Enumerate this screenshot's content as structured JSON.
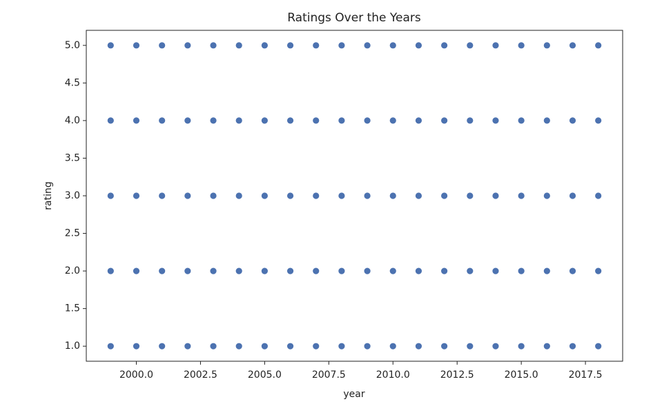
{
  "chart_data": {
    "type": "scatter",
    "title": "Ratings Over the Years",
    "xlabel": "year",
    "ylabel": "rating",
    "color": "#4c72b0",
    "x": [
      1999,
      1999,
      1999,
      1999,
      1999,
      2000,
      2000,
      2000,
      2000,
      2000,
      2001,
      2001,
      2001,
      2001,
      2001,
      2002,
      2002,
      2002,
      2002,
      2002,
      2003,
      2003,
      2003,
      2003,
      2003,
      2004,
      2004,
      2004,
      2004,
      2004,
      2005,
      2005,
      2005,
      2005,
      2005,
      2006,
      2006,
      2006,
      2006,
      2006,
      2007,
      2007,
      2007,
      2007,
      2007,
      2008,
      2008,
      2008,
      2008,
      2008,
      2009,
      2009,
      2009,
      2009,
      2009,
      2010,
      2010,
      2010,
      2010,
      2010,
      2011,
      2011,
      2011,
      2011,
      2011,
      2012,
      2012,
      2012,
      2012,
      2012,
      2013,
      2013,
      2013,
      2013,
      2013,
      2014,
      2014,
      2014,
      2014,
      2014,
      2015,
      2015,
      2015,
      2015,
      2015,
      2016,
      2016,
      2016,
      2016,
      2016,
      2017,
      2017,
      2017,
      2017,
      2017,
      2018,
      2018,
      2018,
      2018,
      2018
    ],
    "values": [
      1,
      2,
      3,
      4,
      5,
      1,
      2,
      3,
      4,
      5,
      1,
      2,
      3,
      4,
      5,
      1,
      2,
      3,
      4,
      5,
      1,
      2,
      3,
      4,
      5,
      1,
      2,
      3,
      4,
      5,
      1,
      2,
      3,
      4,
      5,
      1,
      2,
      3,
      4,
      5,
      1,
      2,
      3,
      4,
      5,
      1,
      2,
      3,
      4,
      5,
      1,
      2,
      3,
      4,
      5,
      1,
      2,
      3,
      4,
      5,
      1,
      2,
      3,
      4,
      5,
      1,
      2,
      3,
      4,
      5,
      1,
      2,
      3,
      4,
      5,
      1,
      2,
      3,
      4,
      5,
      1,
      2,
      3,
      4,
      5,
      1,
      2,
      3,
      4,
      5,
      1,
      2,
      3,
      4,
      5,
      1,
      2,
      3,
      4,
      5
    ],
    "xlim": [
      1998.05,
      2018.95
    ],
    "xticks": [
      {
        "value": 2000,
        "label": "2000.0"
      },
      2002.5,
      {
        "value": 2005,
        "label": "2005.0"
      },
      2007.5,
      {
        "value": 2010,
        "label": "2010.0"
      },
      2012.5,
      {
        "value": 2015,
        "label": "2015.0"
      },
      2017.5
    ],
    "ylim": [
      0.8,
      5.2
    ],
    "yticks": [
      {
        "value": 1,
        "label": "1.0"
      },
      1.5,
      {
        "value": 2,
        "label": "2.0"
      },
      2.5,
      {
        "value": 3,
        "label": "3.0"
      },
      3.5,
      {
        "value": 4,
        "label": "4.0"
      },
      4.5,
      {
        "value": 5,
        "label": "5.0"
      }
    ]
  }
}
